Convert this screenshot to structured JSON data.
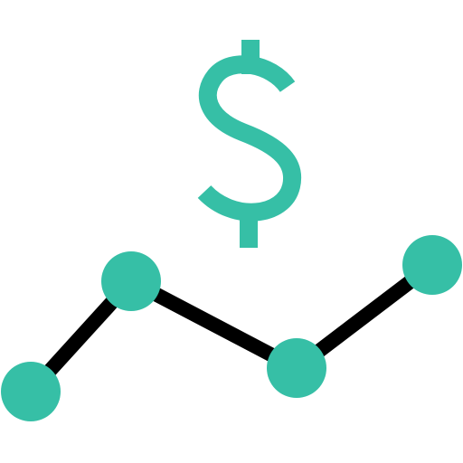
{
  "icon": {
    "name": "dollar-trend-icon",
    "symbol_icon": "dollar-sign-icon",
    "trend_icon": "line-trend-icon"
  },
  "colors": {
    "accent": "#36BFA6",
    "line": "#000000",
    "background": "#FFFFFF"
  },
  "trend": {
    "point_count": 4
  }
}
